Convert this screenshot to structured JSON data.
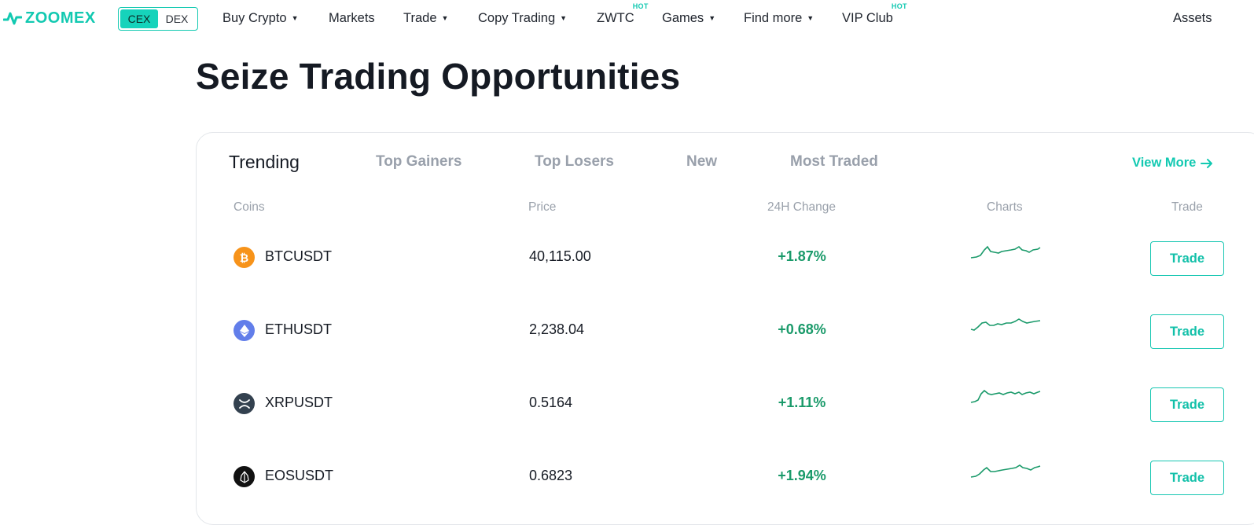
{
  "brand": {
    "name": "ZOOMEX",
    "color": "#12c9b1"
  },
  "mode_switch": {
    "options": [
      "CEX",
      "DEX"
    ],
    "selected": "CEX"
  },
  "nav": {
    "items": [
      {
        "label": "Buy Crypto",
        "dropdown": true
      },
      {
        "label": "Markets",
        "dropdown": false
      },
      {
        "label": "Trade",
        "dropdown": true
      },
      {
        "label": "Copy Trading",
        "dropdown": true
      },
      {
        "label": "ZWTC",
        "dropdown": false,
        "badge": "HOT"
      },
      {
        "label": "Games",
        "dropdown": true
      },
      {
        "label": "Find more",
        "dropdown": true
      },
      {
        "label": "VIP Club",
        "dropdown": false,
        "badge": "HOT"
      }
    ],
    "assets": "Assets"
  },
  "page_title": "Seize Trading Opportunities",
  "market": {
    "tabs": [
      "Trending",
      "Top Gainers",
      "Top Losers",
      "New",
      "Most Traded"
    ],
    "active_tab": "Trending",
    "view_more": "View More",
    "columns": [
      "Coins",
      "Price",
      "24H Change",
      "Charts",
      "Trade"
    ],
    "rows": [
      {
        "coin": "BTCUSDT",
        "icon": "bitcoin-icon",
        "icon_color": "#f7931a",
        "price": "40,115.00",
        "change": "+1.87%",
        "trade": "Trade"
      },
      {
        "coin": "ETHUSDT",
        "icon": "ethereum-icon",
        "icon_color": "#627eea",
        "price": "2,238.04",
        "change": "+0.68%",
        "trade": "Trade"
      },
      {
        "coin": "XRPUSDT",
        "icon": "xrp-icon",
        "icon_color": "#33414f",
        "price": "0.5164",
        "change": "+1.11%",
        "trade": "Trade"
      },
      {
        "coin": "EOSUSDT",
        "icon": "eos-icon",
        "icon_color": "#111111",
        "price": "0.6823",
        "change": "+1.94%",
        "trade": "Trade"
      }
    ]
  },
  "colors": {
    "positive": "#1a9a6a",
    "accent": "#12c9b1"
  }
}
